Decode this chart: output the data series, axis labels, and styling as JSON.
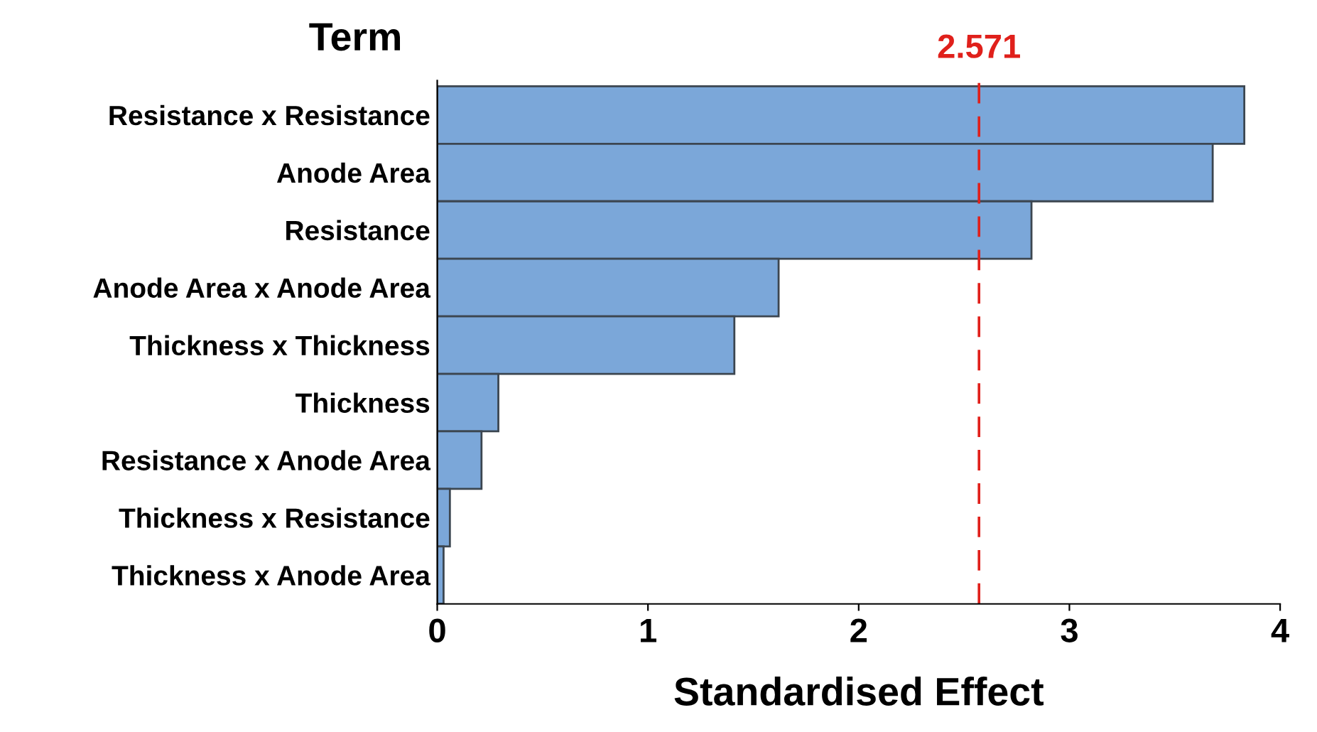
{
  "chart_data": {
    "type": "bar",
    "orientation": "horizontal",
    "ylabel": "Term",
    "xlabel": "Standardised Effect",
    "categories": [
      "Resistance x Resistance",
      "Anode Area",
      "Resistance",
      "Anode Area x Anode Area",
      "Thickness x Thickness",
      "Thickness",
      "Resistance x Anode Area",
      "Thickness x Resistance",
      "Thickness x Anode Area"
    ],
    "values": [
      3.83,
      3.68,
      2.82,
      1.62,
      1.41,
      0.29,
      0.21,
      0.06,
      0.03
    ],
    "color": "#7ba7d9",
    "xlim": [
      0,
      4
    ],
    "xticks": [
      0,
      1,
      2,
      3,
      4
    ],
    "grid": false,
    "legend": false,
    "ref_lines": [
      {
        "axis": "x",
        "value": 2.571,
        "label": "2.571",
        "color": "#e0201b",
        "line_style": "dashed"
      }
    ]
  }
}
